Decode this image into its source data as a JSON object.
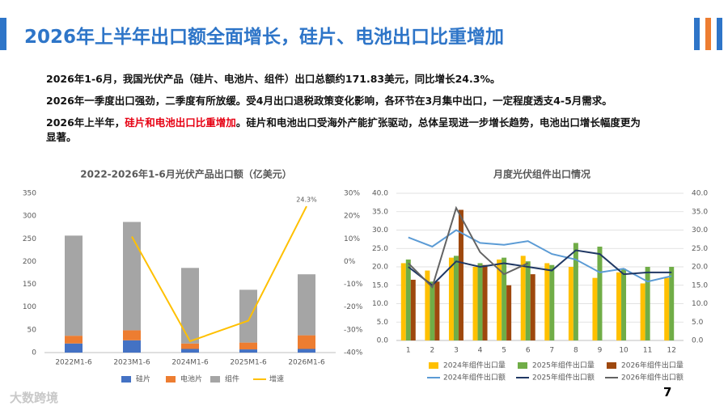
{
  "header": {
    "title": "2026年上半年出口额全面增长，硅片、电池出口比重增加"
  },
  "paragraphs": [
    "2026年1-6月，我国光伏产品（硅片、电池片、组件）出口总额约171.83美元，同比增长24.3%。",
    "2026年一季度出口强劲，二季度有所放缓。受4月出口退税政策变化影响，各环节在3月集中出口，一定程度透支4-5月需求。"
  ],
  "highlight_paragraph": [
    "2026年上半年，",
    "硅片和电池出口比重增加",
    "。硅片和电池出口受海外产能扩张驱动，总体呈现进一步增长趋势，电池出口增长幅度更为显著。"
  ],
  "footer": {
    "logo": "大数跨境",
    "page": "7"
  },
  "chart_data": [
    {
      "type": "bar",
      "stacked": true,
      "grid": false,
      "title": "2022-2026年1-6月光伏产品出口额（亿美元）",
      "categories": [
        "2022M1-6",
        "2023M1-6",
        "2024M1-6",
        "2025M1-6",
        "2026M1-6"
      ],
      "series": [
        {
          "name": "硅片",
          "color": "#4472c4",
          "values": [
            20,
            27,
            8,
            7,
            8
          ]
        },
        {
          "name": "电池片",
          "color": "#ed7d31",
          "values": [
            17,
            22,
            12,
            15,
            30
          ]
        },
        {
          "name": "组件",
          "color": "#a5a5a5",
          "values": [
            220,
            238,
            166,
            116,
            134
          ]
        },
        {
          "name": "增速",
          "color": "#ffc000",
          "type": "line",
          "axis": "y2",
          "values": [
            null,
            11,
            -35,
            -26,
            24.3
          ],
          "value_labels": [
            null,
            null,
            null,
            null,
            "24.3%"
          ]
        }
      ],
      "ylim": [
        0,
        350
      ],
      "yticks": [
        0,
        50,
        100,
        150,
        200,
        250,
        300,
        350
      ],
      "y2lim": [
        -40,
        30
      ],
      "y2ticks": [
        {
          "value": -40,
          "label": "-40%"
        },
        {
          "value": -30,
          "label": "-30%"
        },
        {
          "value": -20,
          "label": "-20%"
        },
        {
          "value": -10,
          "label": "-10%"
        },
        {
          "value": 0,
          "label": "0%"
        },
        {
          "value": 10,
          "label": "10%"
        },
        {
          "value": 20,
          "label": "20%"
        },
        {
          "value": 30,
          "label": "30%"
        }
      ]
    },
    {
      "type": "bar",
      "stacked": false,
      "grid": true,
      "title": "月度光伏组件出口情况",
      "categories": [
        "1",
        "2",
        "3",
        "4",
        "5",
        "6",
        "7",
        "8",
        "9",
        "10",
        "11",
        "12"
      ],
      "series": [
        {
          "name": "2024年组件出口量",
          "color": "#ffc000",
          "values": [
            21,
            19,
            22.5,
            20,
            22,
            23,
            21,
            20,
            17,
            18.5,
            15.5,
            17
          ]
        },
        {
          "name": "2025年组件出口量",
          "color": "#70ad47",
          "values": [
            22,
            16,
            23,
            21,
            22.5,
            21.5,
            20.5,
            26.5,
            25.5,
            19.5,
            20,
            20
          ]
        },
        {
          "name": "2026年组件出口量",
          "color": "#9e480e",
          "values": [
            16.5,
            16,
            35.5,
            20.5,
            15,
            18,
            null,
            null,
            null,
            null,
            null,
            null
          ]
        },
        {
          "name": "2024年组件出口额",
          "color": "#5b9bd5",
          "type": "line",
          "axis": "y2",
          "values": [
            28,
            25.5,
            30,
            26.5,
            26,
            27,
            23.5,
            22,
            18.5,
            19.5,
            16,
            17.5
          ]
        },
        {
          "name": "2025年组件出口额",
          "color": "#203864",
          "type": "line",
          "axis": "y2",
          "values": [
            20,
            15,
            21.5,
            20,
            21,
            20,
            19,
            24.5,
            23.5,
            18,
            18.5,
            18.5
          ]
        },
        {
          "name": "2026年组件出口额",
          "color": "#636363",
          "type": "line",
          "axis": "y2",
          "values": [
            21,
            14.5,
            36,
            24,
            18,
            21,
            null,
            null,
            null,
            null,
            null,
            null
          ]
        }
      ],
      "ylim": [
        0,
        40
      ],
      "yticks": [
        {
          "value": 0,
          "label": "0.0"
        },
        {
          "value": 5,
          "label": "5.0"
        },
        {
          "value": 10,
          "label": "10.0"
        },
        {
          "value": 15,
          "label": "15.0"
        },
        {
          "value": 20,
          "label": "20.0"
        },
        {
          "value": 25,
          "label": "25.0"
        },
        {
          "value": 30,
          "label": "30.0"
        },
        {
          "value": 35,
          "label": "35.0"
        },
        {
          "value": 40,
          "label": "40.0"
        }
      ],
      "y2lim": [
        0,
        40
      ],
      "y2ticks": [
        {
          "value": 0,
          "label": "0.0"
        },
        {
          "value": 5,
          "label": "5.0"
        },
        {
          "value": 10,
          "label": "10.0"
        },
        {
          "value": 15,
          "label": "15.0"
        },
        {
          "value": 20,
          "label": "20.0"
        },
        {
          "value": 25,
          "label": "25.0"
        },
        {
          "value": 30,
          "label": "30.0"
        },
        {
          "value": 35,
          "label": "35.0"
        },
        {
          "value": 40,
          "label": "40.0"
        }
      ]
    }
  ]
}
